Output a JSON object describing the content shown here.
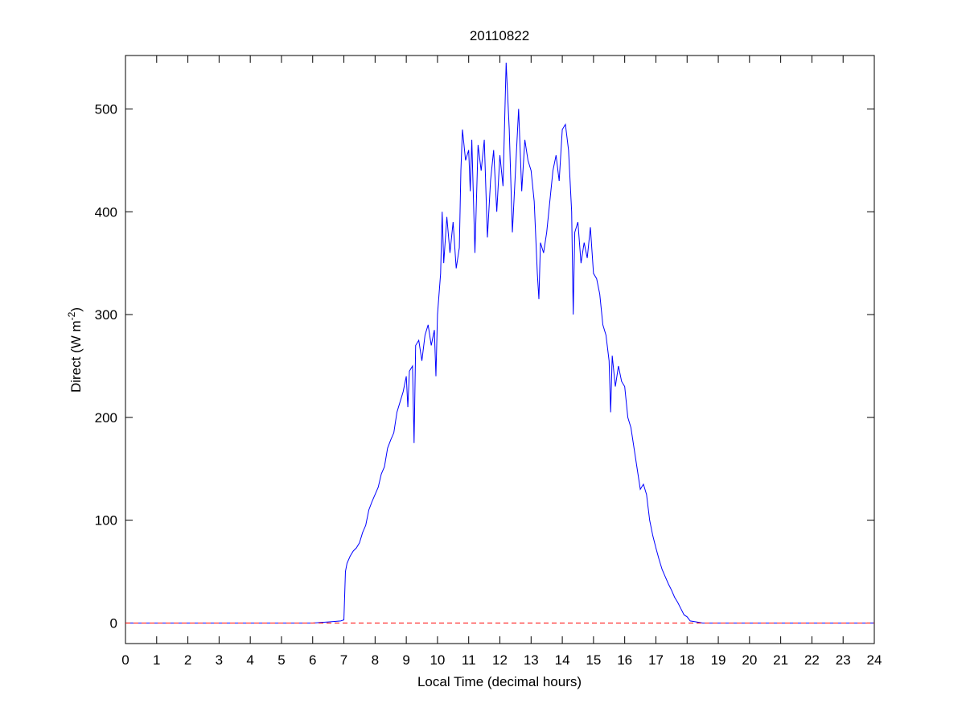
{
  "chart_data": {
    "type": "line",
    "title": "20110822",
    "xlabel": "Local Time (decimal hours)",
    "ylabel": [
      "Direct (W m",
      "-2",
      ")"
    ],
    "xlim": [
      0,
      24
    ],
    "ylim": [
      -20,
      552
    ],
    "xticks": [
      0,
      1,
      2,
      3,
      4,
      5,
      6,
      7,
      8,
      9,
      10,
      11,
      12,
      13,
      14,
      15,
      16,
      17,
      18,
      19,
      20,
      21,
      22,
      23,
      24
    ],
    "yticks": [
      0,
      100,
      200,
      300,
      400,
      500
    ],
    "grid": false,
    "series": [
      {
        "color": "#0000ff",
        "dash": false,
        "x": [
          0,
          1,
          2,
          3,
          4,
          5,
          6,
          6.5,
          6.9,
          7.0,
          7.05,
          7.1,
          7.2,
          7.3,
          7.4,
          7.5,
          7.6,
          7.7,
          7.8,
          7.9,
          8.0,
          8.1,
          8.2,
          8.3,
          8.4,
          8.5,
          8.6,
          8.7,
          8.8,
          8.9,
          9.0,
          9.05,
          9.1,
          9.2,
          9.25,
          9.3,
          9.4,
          9.5,
          9.6,
          9.7,
          9.8,
          9.9,
          9.95,
          10.0,
          10.1,
          10.15,
          10.2,
          10.3,
          10.4,
          10.5,
          10.6,
          10.7,
          10.75,
          10.8,
          10.9,
          11.0,
          11.05,
          11.1,
          11.2,
          11.3,
          11.4,
          11.5,
          11.6,
          11.7,
          11.8,
          11.9,
          12.0,
          12.1,
          12.2,
          12.3,
          12.4,
          12.5,
          12.6,
          12.7,
          12.8,
          12.9,
          13.0,
          13.1,
          13.2,
          13.25,
          13.3,
          13.4,
          13.5,
          13.6,
          13.7,
          13.8,
          13.9,
          14.0,
          14.1,
          14.2,
          14.3,
          14.35,
          14.4,
          14.5,
          14.6,
          14.7,
          14.8,
          14.9,
          15.0,
          15.1,
          15.2,
          15.3,
          15.4,
          15.5,
          15.55,
          15.6,
          15.7,
          15.8,
          15.9,
          16.0,
          16.1,
          16.2,
          16.3,
          16.4,
          16.5,
          16.6,
          16.7,
          16.8,
          16.9,
          17.0,
          17.1,
          17.2,
          17.3,
          17.4,
          17.5,
          17.6,
          17.7,
          17.8,
          17.9,
          18.0,
          18.1,
          18.3,
          18.5,
          19,
          20,
          21,
          22,
          23,
          24
        ],
        "values": [
          0,
          0,
          0,
          0,
          0,
          0,
          0,
          1,
          2,
          3,
          50,
          58,
          65,
          70,
          73,
          78,
          88,
          95,
          110,
          118,
          125,
          132,
          145,
          152,
          170,
          178,
          185,
          205,
          215,
          225,
          240,
          210,
          245,
          250,
          175,
          270,
          275,
          255,
          280,
          290,
          270,
          285,
          240,
          300,
          340,
          400,
          350,
          395,
          360,
          390,
          345,
          365,
          440,
          480,
          450,
          460,
          420,
          470,
          360,
          465,
          440,
          470,
          375,
          430,
          460,
          400,
          455,
          425,
          545,
          480,
          380,
          440,
          500,
          420,
          470,
          450,
          440,
          410,
          340,
          315,
          370,
          360,
          380,
          410,
          440,
          455,
          430,
          480,
          485,
          460,
          400,
          300,
          380,
          390,
          350,
          370,
          355,
          385,
          340,
          335,
          320,
          290,
          280,
          255,
          205,
          260,
          230,
          250,
          235,
          230,
          200,
          190,
          170,
          150,
          130,
          135,
          125,
          100,
          85,
          73,
          62,
          52,
          45,
          38,
          32,
          25,
          20,
          14,
          8,
          6,
          2,
          1,
          0,
          0,
          0,
          0,
          0,
          0,
          0
        ]
      },
      {
        "color": "#ff0000",
        "dash": true,
        "x": [
          0,
          24
        ],
        "values": [
          0,
          0
        ]
      }
    ]
  }
}
